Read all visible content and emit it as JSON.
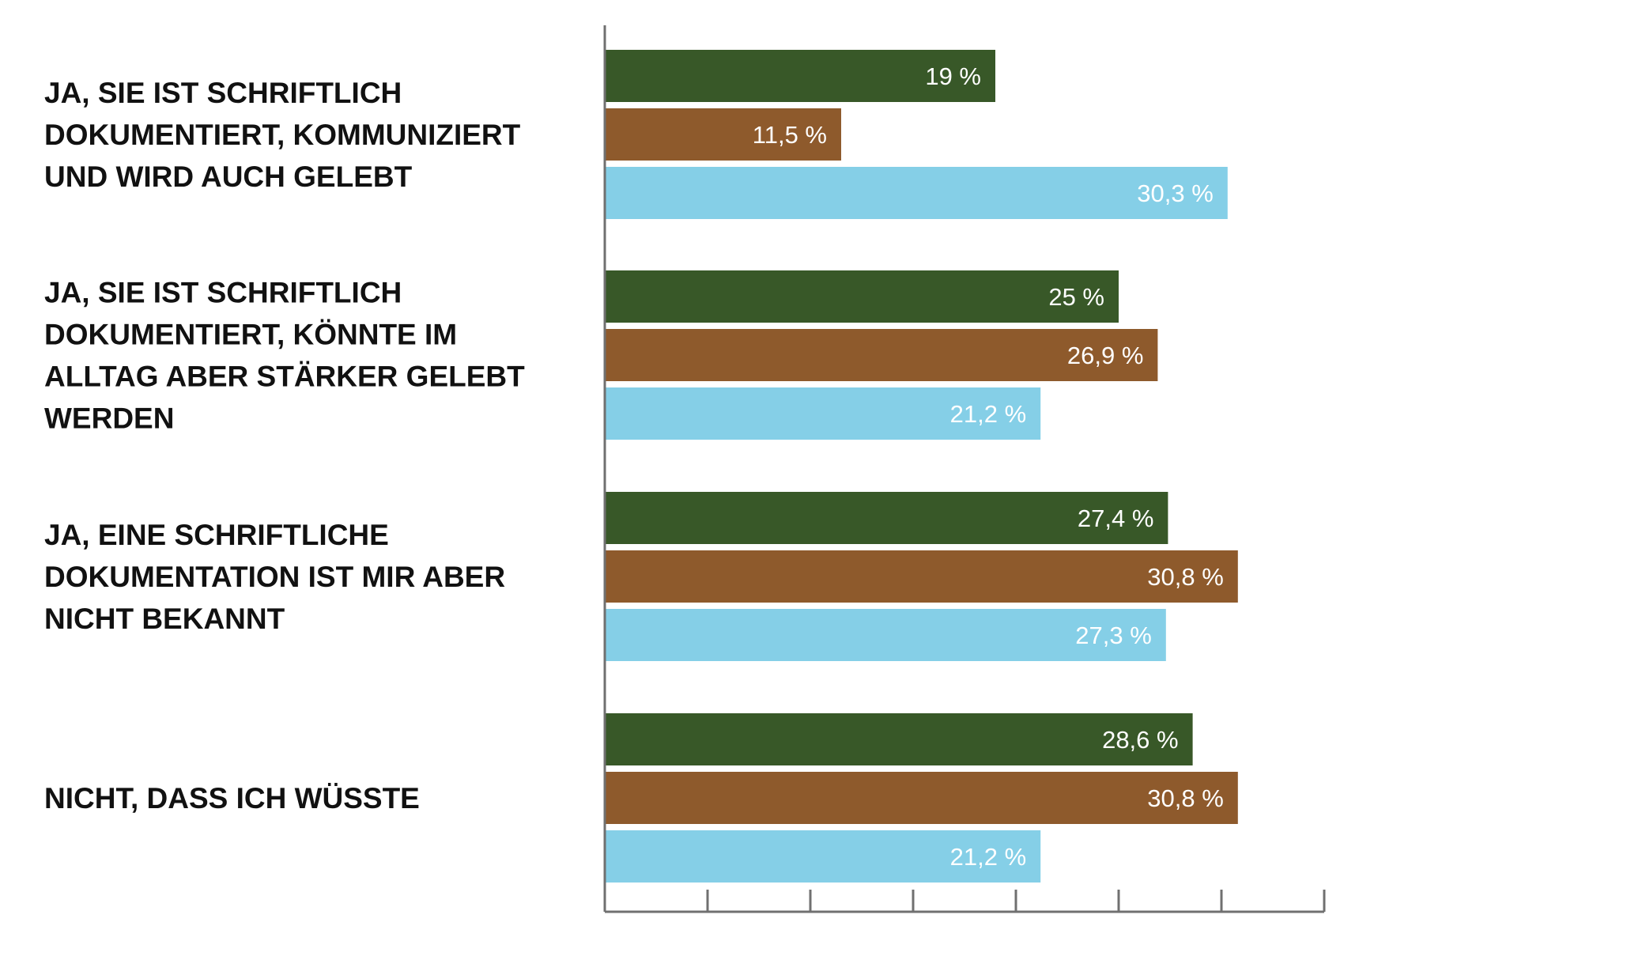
{
  "chart_data": {
    "type": "bar",
    "orientation": "horizontal",
    "categories": [
      [
        "JA, SIE IST SCHRIFTLICH",
        "DOKUMENTIERT, KOMMUNIZIERT",
        "UND WIRD AUCH GELEBT"
      ],
      [
        "JA, SIE IST SCHRIFTLICH",
        "DOKUMENTIERT, KÖNNTE IM",
        "ALLTAG ABER STÄRKER GELEBT",
        "WERDEN"
      ],
      [
        "JA, EINE SCHRIFTLICHE",
        "DOKUMENTATION IST MIR ABER",
        "NICHT BEKANNT"
      ],
      [
        "NICHT, DASS ICH WÜSSTE"
      ]
    ],
    "series": [
      {
        "name": "series-1",
        "color": "#385828",
        "values": [
          19,
          25,
          27.4,
          28.6
        ],
        "labels": [
          "19 %",
          "25 %",
          "27,4 %",
          "28,6 %"
        ]
      },
      {
        "name": "series-2",
        "color": "#8e5a2c",
        "values": [
          11.5,
          26.9,
          30.8,
          30.8
        ],
        "labels": [
          "11,5 %",
          "26,9 %",
          "30,8 %",
          "30,8 %"
        ]
      },
      {
        "name": "series-3",
        "color": "#85cfe7",
        "values": [
          30.3,
          21.2,
          27.3,
          21.2
        ],
        "labels": [
          "30,3 %",
          "21,2 %",
          "27,3 %",
          "21,2 %"
        ]
      }
    ],
    "xlim": [
      0,
      35
    ],
    "x_ticks": [
      0,
      5,
      10,
      15,
      20,
      25,
      30,
      35
    ],
    "grid": false,
    "legend": "none",
    "title": "",
    "xlabel": "",
    "ylabel": ""
  }
}
